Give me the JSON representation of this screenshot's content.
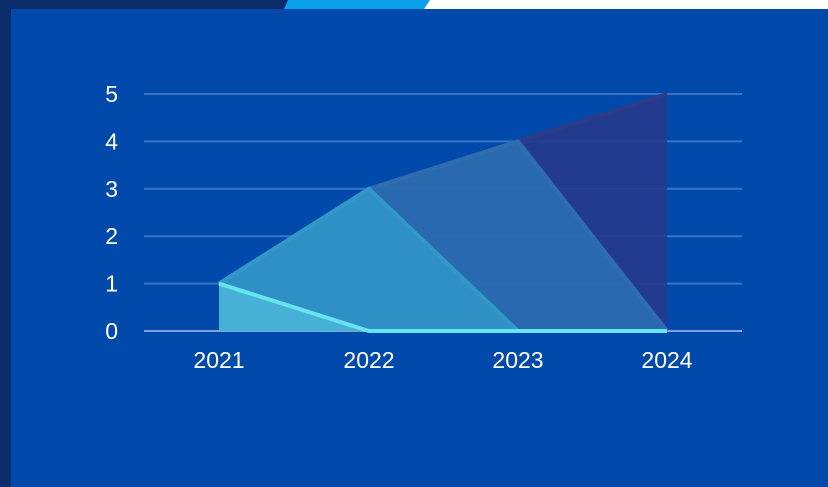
{
  "colors": {
    "outer_background": "#0a2c6a",
    "panel_background": "#014aac",
    "header_dark": "#0a2c6a",
    "header_accent": "#0aa0ea",
    "header_light": "#ffffff",
    "gridline": "#3a74c6",
    "baseline": "#79a6dc",
    "tick_text": "#ffffff"
  },
  "chart_data": {
    "type": "area",
    "x": [
      "2021",
      "2022",
      "2023",
      "2024"
    ],
    "ylim": [
      0,
      5
    ],
    "y_ticks": [
      "0",
      "1",
      "2",
      "3",
      "4",
      "5"
    ],
    "grid": true,
    "series": [
      {
        "values": [
          1,
          0,
          0,
          0
        ],
        "fill": "#4ab4d8",
        "stroke": "#66e4f0"
      },
      {
        "values": [
          1,
          3,
          0,
          0
        ],
        "fill": "#2f95c8",
        "stroke": "#3298c8"
      },
      {
        "values": [
          1,
          3,
          4,
          0
        ],
        "fill": "#2a6fb4",
        "stroke": "#2e6eb0"
      },
      {
        "values": [
          1,
          3,
          4,
          5
        ],
        "fill": "#263a8c",
        "stroke": "#2c3c88"
      }
    ]
  }
}
